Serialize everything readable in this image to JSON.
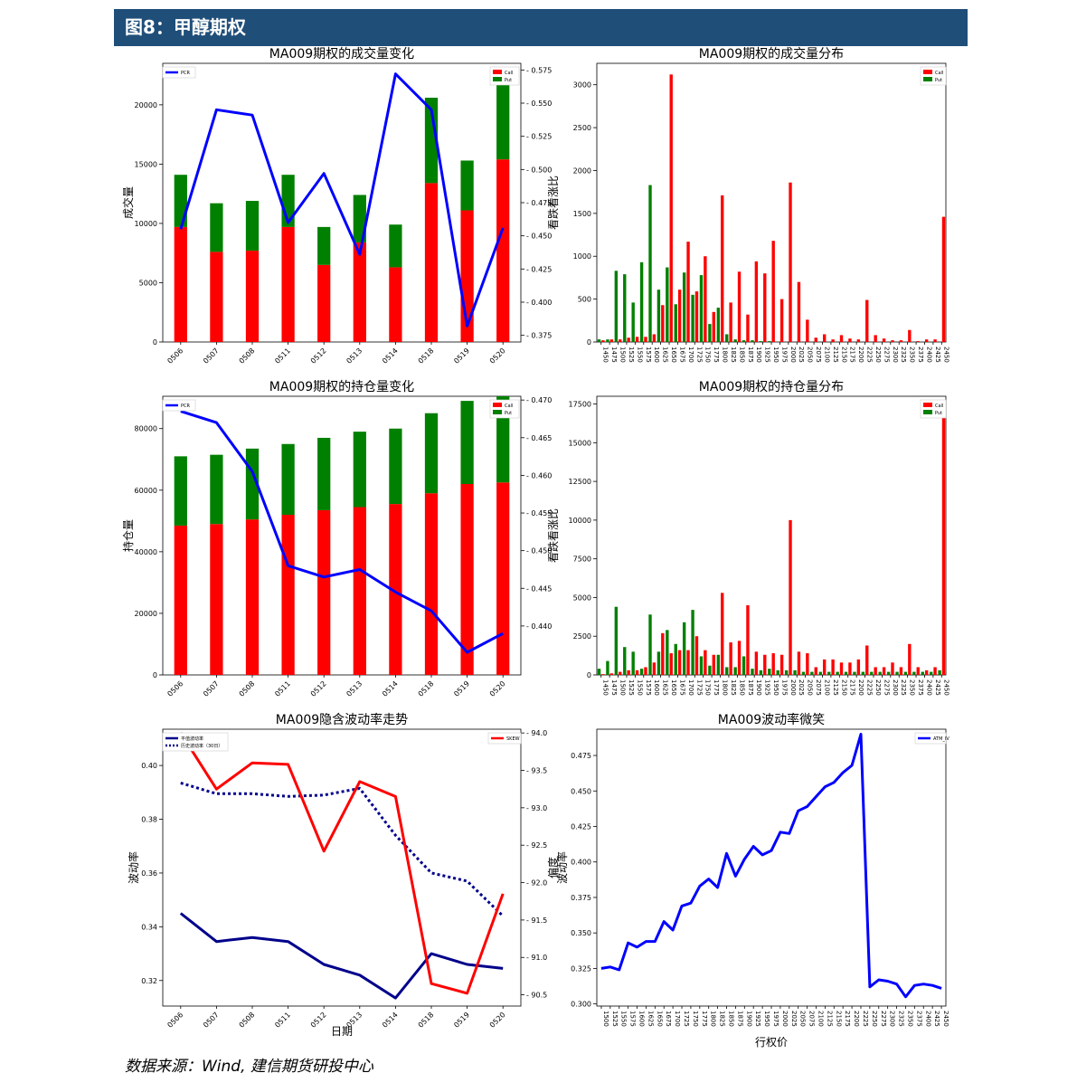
{
  "header": {
    "title": "图8：甲醇期权"
  },
  "footer": {
    "source": "数据来源：Wind, 建信期货研投中心"
  },
  "chart_data": [
    {
      "id": "vol-change",
      "type": "bar",
      "title": "MA009期权的成交量变化",
      "categories": [
        "0506",
        "0507",
        "0508",
        "0511",
        "0512",
        "0513",
        "0514",
        "0518",
        "0519",
        "0520"
      ],
      "series": [
        {
          "name": "Call",
          "values": [
            9700,
            7600,
            7700,
            9700,
            6500,
            8400,
            6300,
            13400,
            11100,
            15400
          ],
          "color": "#ff0000"
        },
        {
          "name": "Put",
          "values": [
            4400,
            4100,
            4200,
            4400,
            3200,
            4000,
            3600,
            7200,
            4200,
            7500
          ],
          "color": "#008000"
        },
        {
          "name": "PCR",
          "axis": "right",
          "values": [
            0.455,
            0.545,
            0.541,
            0.46,
            0.497,
            0.436,
            0.572,
            0.545,
            0.382,
            0.456
          ],
          "color": "#0000ff"
        }
      ],
      "ylabel": "成交量",
      "ylim": [
        0,
        23500
      ],
      "yticks": [
        0,
        5000,
        10000,
        15000,
        20000
      ],
      "y2label": "看跌看涨比",
      "y2lim": [
        0.37,
        0.58
      ],
      "y2ticks": [
        0.375,
        0.4,
        0.425,
        0.45,
        0.475,
        0.5,
        0.525,
        0.55,
        0.575
      ]
    },
    {
      "id": "vol-dist",
      "type": "bar",
      "title": "MA009期权的成交量分布",
      "strikes": [
        "1450",
        "1475",
        "1500",
        "1525",
        "1550",
        "1575",
        "1600",
        "1625",
        "1650",
        "1675",
        "1700",
        "1725",
        "1750",
        "1775",
        "1800",
        "1825",
        "1850",
        "1875",
        "1900",
        "1925",
        "1950",
        "1975",
        "2000",
        "2025",
        "2050",
        "2075",
        "2100",
        "2125",
        "2150",
        "2175",
        "2200",
        "2225",
        "2250",
        "2275",
        "2300",
        "2325",
        "2350",
        "2375",
        "2400",
        "2425",
        "2450"
      ],
      "series": [
        {
          "name": "Call",
          "values": [
            20,
            30,
            30,
            50,
            60,
            60,
            90,
            430,
            3120,
            610,
            1170,
            590,
            1000,
            350,
            1710,
            460,
            820,
            320,
            940,
            800,
            1180,
            500,
            1860,
            700,
            260,
            50,
            90,
            30,
            80,
            40,
            30,
            490,
            80,
            40,
            20,
            20,
            140,
            10,
            30,
            30,
            1460
          ],
          "color": "#ff0000"
        },
        {
          "name": "Put",
          "values": [
            30,
            30,
            830,
            790,
            460,
            930,
            1830,
            610,
            870,
            440,
            810,
            550,
            780,
            210,
            400,
            90,
            30,
            20,
            20,
            10,
            10,
            0,
            0,
            0,
            0,
            0,
            0,
            0,
            0,
            0,
            0,
            0,
            0,
            0,
            0,
            0,
            0,
            0,
            0,
            0,
            0
          ],
          "color": "#008000"
        }
      ],
      "ylim": [
        0,
        3250
      ],
      "yticks": [
        0,
        500,
        1000,
        1500,
        2000,
        2500,
        3000
      ]
    },
    {
      "id": "oi-change",
      "type": "bar",
      "title": "MA009期权的持仓量变化",
      "categories": [
        "0506",
        "0507",
        "0508",
        "0511",
        "0512",
        "0513",
        "0514",
        "0518",
        "0519",
        "0520"
      ],
      "series": [
        {
          "name": "Call",
          "values": [
            48500,
            49000,
            50500,
            52000,
            53500,
            54500,
            55500,
            59000,
            62000,
            62500
          ],
          "color": "#ff0000"
        },
        {
          "name": "Put",
          "values": [
            22500,
            22500,
            23000,
            23000,
            23500,
            24500,
            24500,
            26000,
            27000,
            28000
          ],
          "color": "#008000"
        },
        {
          "name": "PCR",
          "axis": "right",
          "values": [
            0.4685,
            0.467,
            0.4605,
            0.448,
            0.4465,
            0.4475,
            0.4445,
            0.442,
            0.4365,
            0.439
          ],
          "color": "#0000ff"
        }
      ],
      "ylabel": "持仓量",
      "ylim": [
        0,
        90500
      ],
      "yticks": [
        0,
        20000,
        40000,
        60000,
        80000
      ],
      "y2label": "看跌看涨比",
      "y2lim": [
        0.4335,
        0.4705
      ],
      "y2ticks": [
        0.44,
        0.445,
        0.45,
        0.455,
        0.46,
        0.465,
        0.47
      ]
    },
    {
      "id": "oi-dist",
      "type": "bar",
      "title": "MA009期权的持仓量分布",
      "strikes": [
        "1450",
        "1475",
        "1500",
        "1525",
        "1550",
        "1575",
        "1600",
        "1625",
        "1650",
        "1675",
        "1700",
        "1725",
        "1750",
        "1775",
        "1800",
        "1825",
        "1850",
        "1875",
        "1900",
        "1925",
        "1950",
        "1975",
        "2000",
        "2025",
        "2050",
        "2075",
        "2100",
        "2125",
        "2150",
        "2175",
        "2200",
        "2225",
        "2250",
        "2275",
        "2300",
        "2325",
        "2350",
        "2375",
        "2400",
        "2425",
        "2450"
      ],
      "series": [
        {
          "name": "Call",
          "values": [
            50,
            100,
            200,
            300,
            300,
            500,
            800,
            2700,
            1400,
            1600,
            1600,
            2500,
            1600,
            1300,
            5300,
            2100,
            2200,
            4500,
            1500,
            1300,
            1400,
            1300,
            10000,
            1500,
            1400,
            500,
            1000,
            1000,
            800,
            800,
            1000,
            1900,
            500,
            500,
            800,
            500,
            2000,
            500,
            300,
            500,
            17300
          ],
          "color": "#ff0000"
        },
        {
          "name": "Put",
          "values": [
            400,
            900,
            4400,
            1800,
            1500,
            400,
            3900,
            1500,
            2900,
            2000,
            3400,
            4200,
            1200,
            600,
            1300,
            500,
            500,
            1200,
            400,
            300,
            400,
            300,
            300,
            300,
            200,
            200,
            200,
            200,
            200,
            200,
            200,
            200,
            200,
            200,
            200,
            200,
            200,
            200,
            200,
            200,
            300
          ],
          "color": "#008000"
        }
      ],
      "ylim": [
        0,
        18000
      ],
      "yticks": [
        0,
        2500,
        5000,
        7500,
        10000,
        12500,
        15000,
        17500
      ]
    },
    {
      "id": "iv-trend",
      "type": "line",
      "title": "MA009隐含波动率走势",
      "categories": [
        "0506",
        "0507",
        "0508",
        "0511",
        "0512",
        "0513",
        "0514",
        "0518",
        "0519",
        "0520"
      ],
      "series": [
        {
          "name": "平值波动率",
          "values": [
            0.345,
            0.3345,
            0.336,
            0.3345,
            0.326,
            0.322,
            0.3135,
            0.33,
            0.326,
            0.3245
          ],
          "color": "#00008b",
          "style": "solid"
        },
        {
          "name": "历史波动率（30日）",
          "values": [
            0.3935,
            0.3895,
            0.3895,
            0.3885,
            0.389,
            0.3915,
            0.374,
            0.36,
            0.357,
            0.344
          ],
          "color": "#00008b",
          "style": "dotted"
        },
        {
          "name": "SKEW",
          "axis": "right",
          "values": [
            94.0,
            93.25,
            93.6,
            93.58,
            92.42,
            93.35,
            93.15,
            90.65,
            90.52,
            91.85
          ],
          "color": "#ff0000",
          "style": "solid"
        }
      ],
      "xlabel": "日期",
      "ylabel": "波动率",
      "ylim": [
        0.3105,
        0.4135
      ],
      "yticks": [
        0.32,
        0.34,
        0.36,
        0.38,
        0.4
      ],
      "y2label": "偏度",
      "y2lim": [
        90.35,
        94.05
      ],
      "y2ticks": [
        90.5,
        91.0,
        91.5,
        92.0,
        92.5,
        93.0,
        93.5,
        94.0
      ]
    },
    {
      "id": "smile",
      "type": "line",
      "title": "MA009波动率微笑",
      "strikes": [
        "1500",
        "1525",
        "1550",
        "1575",
        "1600",
        "1625",
        "1650",
        "1675",
        "1700",
        "1725",
        "1750",
        "1775",
        "1800",
        "1825",
        "1850",
        "1875",
        "1900",
        "1925",
        "1950",
        "1975",
        "2000",
        "2025",
        "2050",
        "2075",
        "2100",
        "2125",
        "2150",
        "2175",
        "2200",
        "2225",
        "2250",
        "2275",
        "2300",
        "2325",
        "2350",
        "2375",
        "2400",
        "2425",
        "2450"
      ],
      "series": [
        {
          "name": "ATM_IV",
          "values": [
            0.325,
            0.326,
            0.324,
            0.343,
            0.34,
            0.344,
            0.344,
            0.358,
            0.352,
            0.369,
            0.371,
            0.383,
            0.388,
            0.382,
            0.406,
            0.39,
            0.402,
            0.411,
            0.405,
            0.408,
            0.421,
            0.42,
            0.436,
            0.439,
            0.446,
            0.453,
            0.456,
            0.463,
            0.468,
            0.49,
            0.312,
            0.317,
            0.316,
            0.314,
            0.305,
            0.313,
            0.314,
            0.313,
            0.311
          ],
          "color": "#0000ff"
        }
      ],
      "xlabel": "行权价",
      "ylabel": "波动率",
      "ylim": [
        0.2985,
        0.4935
      ],
      "yticks": [
        0.3,
        0.325,
        0.35,
        0.375,
        0.4,
        0.425,
        0.45,
        0.475
      ]
    }
  ]
}
